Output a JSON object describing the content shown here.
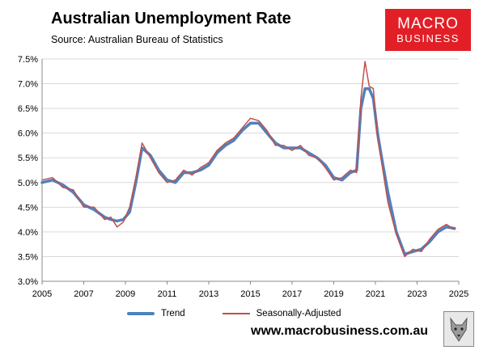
{
  "header": {
    "title": "Australian Unemployment Rate",
    "subtitle": "Source: Australian Bureau of Statistics"
  },
  "logo": {
    "line1": "MACRO",
    "line2": "BUSINESS"
  },
  "footer": {
    "website": "www.macrobusiness.com.au",
    "emblem_icon": "wolf-emblem-icon"
  },
  "colors": {
    "trend": "#4f81bd",
    "seasonally_adjusted": "#c0504d",
    "logo_bg": "#e21f26",
    "grid": "#d9d9d9"
  },
  "chart_data": {
    "type": "line",
    "title": "Australian Unemployment Rate",
    "xlim": [
      2005,
      2025
    ],
    "ylim": [
      3.0,
      7.5
    ],
    "x_ticks": [
      "2005",
      "2007",
      "2009",
      "2011",
      "2013",
      "2015",
      "2017",
      "2019",
      "2021",
      "2023",
      "2025"
    ],
    "y_ticks": [
      "3.0%",
      "3.5%",
      "4.0%",
      "4.5%",
      "5.0%",
      "5.5%",
      "6.0%",
      "6.5%",
      "7.0%",
      "7.5%"
    ],
    "grid": "horizontal",
    "legend_position": "bottom",
    "series": [
      {
        "name": "Trend",
        "x": [
          2005.0,
          2005.5,
          2006.0,
          2006.5,
          2007.0,
          2007.5,
          2008.0,
          2008.3,
          2008.6,
          2008.9,
          2009.2,
          2009.5,
          2009.8,
          2010.2,
          2010.6,
          2011.0,
          2011.4,
          2011.8,
          2012.2,
          2012.6,
          2013.0,
          2013.4,
          2013.8,
          2014.2,
          2014.6,
          2015.0,
          2015.4,
          2015.8,
          2016.2,
          2016.6,
          2017.0,
          2017.4,
          2017.8,
          2018.2,
          2018.6,
          2019.0,
          2019.4,
          2019.8,
          2020.1,
          2020.3,
          2020.5,
          2020.7,
          2020.9,
          2021.1,
          2021.3,
          2021.6,
          2022.0,
          2022.4,
          2022.8,
          2023.2,
          2023.6,
          2024.0,
          2024.4,
          2024.8
        ],
        "y": [
          5.0,
          5.05,
          4.95,
          4.8,
          4.55,
          4.45,
          4.3,
          4.25,
          4.22,
          4.25,
          4.4,
          5.0,
          5.7,
          5.55,
          5.25,
          5.05,
          5.0,
          5.2,
          5.2,
          5.25,
          5.35,
          5.6,
          5.75,
          5.85,
          6.05,
          6.2,
          6.2,
          6.0,
          5.8,
          5.7,
          5.7,
          5.7,
          5.6,
          5.5,
          5.35,
          5.1,
          5.05,
          5.2,
          5.25,
          6.5,
          6.9,
          6.9,
          6.7,
          6.0,
          5.5,
          4.8,
          4.0,
          3.55,
          3.6,
          3.65,
          3.8,
          4.0,
          4.1,
          4.07
        ]
      },
      {
        "name": "Seasonally-Adjusted",
        "x": [
          2005.0,
          2005.5,
          2006.0,
          2006.5,
          2007.0,
          2007.5,
          2008.0,
          2008.3,
          2008.6,
          2008.9,
          2009.2,
          2009.5,
          2009.8,
          2010.2,
          2010.6,
          2011.0,
          2011.4,
          2011.8,
          2012.2,
          2012.6,
          2013.0,
          2013.4,
          2013.8,
          2014.2,
          2014.6,
          2015.0,
          2015.4,
          2015.8,
          2016.2,
          2016.6,
          2017.0,
          2017.4,
          2017.8,
          2018.2,
          2018.6,
          2019.0,
          2019.4,
          2019.8,
          2020.1,
          2020.3,
          2020.5,
          2020.7,
          2020.9,
          2021.1,
          2021.3,
          2021.6,
          2022.0,
          2022.4,
          2022.8,
          2023.2,
          2023.6,
          2024.0,
          2024.4,
          2024.8
        ],
        "y": [
          5.05,
          5.1,
          4.9,
          4.85,
          4.5,
          4.5,
          4.25,
          4.3,
          4.1,
          4.2,
          4.5,
          5.1,
          5.8,
          5.5,
          5.2,
          5.0,
          5.05,
          5.25,
          5.15,
          5.3,
          5.4,
          5.65,
          5.8,
          5.9,
          6.1,
          6.3,
          6.25,
          6.05,
          5.75,
          5.75,
          5.65,
          5.75,
          5.55,
          5.5,
          5.3,
          5.05,
          5.1,
          5.25,
          5.2,
          6.7,
          7.45,
          6.95,
          6.9,
          5.9,
          5.4,
          4.6,
          3.95,
          3.5,
          3.65,
          3.6,
          3.85,
          4.05,
          4.15,
          4.05
        ]
      }
    ]
  }
}
